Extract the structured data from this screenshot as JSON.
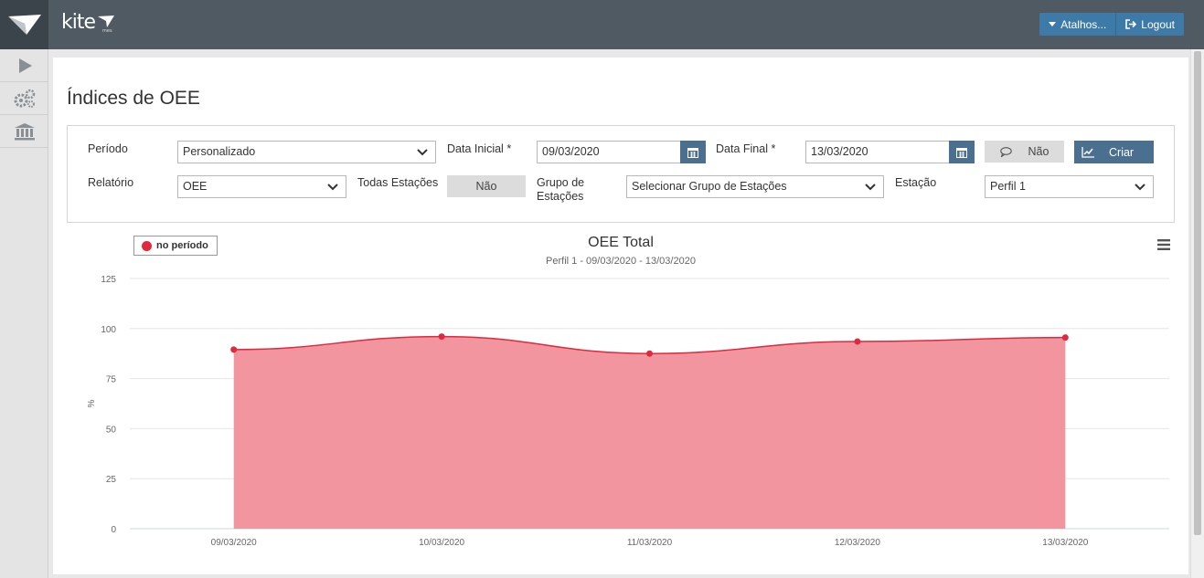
{
  "header": {
    "brand": "kite",
    "brand_sub": "mes",
    "shortcuts_label": "Atalhos...",
    "logout_label": "Logout"
  },
  "sidebar": {
    "items": [
      {
        "icon": "play-icon"
      },
      {
        "icon": "gears-icon"
      },
      {
        "icon": "bank-icon"
      }
    ]
  },
  "page": {
    "title": "Índices de OEE"
  },
  "filters": {
    "periodo_label": "Período",
    "periodo_value": "Personalizado",
    "data_inicial_label": "Data Inicial",
    "data_inicial_value": "09/03/2020",
    "data_final_label": "Data Final",
    "data_final_value": "13/03/2020",
    "required_mark": "*",
    "comment_toggle_label": "Não",
    "criar_label": "Criar",
    "relatorio_label": "Relatório",
    "relatorio_value": "OEE",
    "todas_estacoes_label": "Todas Estações",
    "todas_estacoes_value": "Não",
    "grupo_label_line1": "Grupo de",
    "grupo_label_line2": "Estações",
    "grupo_value": "Selecionar Grupo de Estações",
    "estacao_label": "Estação",
    "estacao_value": "Perfil 1"
  },
  "colors": {
    "header_bg": "#4f5a62",
    "accent_button": "#3e7aa8",
    "series_line": "#e0283e",
    "series_fill": "#f28f99"
  },
  "chart_data": {
    "type": "area",
    "title": "OEE Total",
    "subtitle": "Perfil 1 - 09/03/2020 - 13/03/2020",
    "ylabel": "%",
    "ylim": [
      0,
      125
    ],
    "yticks": [
      0,
      25,
      50,
      75,
      100,
      125
    ],
    "categories": [
      "09/03/2020",
      "10/03/2020",
      "11/03/2020",
      "12/03/2020",
      "13/03/2020"
    ],
    "series": [
      {
        "name": "no período",
        "values": [
          89.5,
          96,
          87.5,
          93.5,
          95.5
        ]
      }
    ],
    "grid": true,
    "legend": "top-left"
  }
}
